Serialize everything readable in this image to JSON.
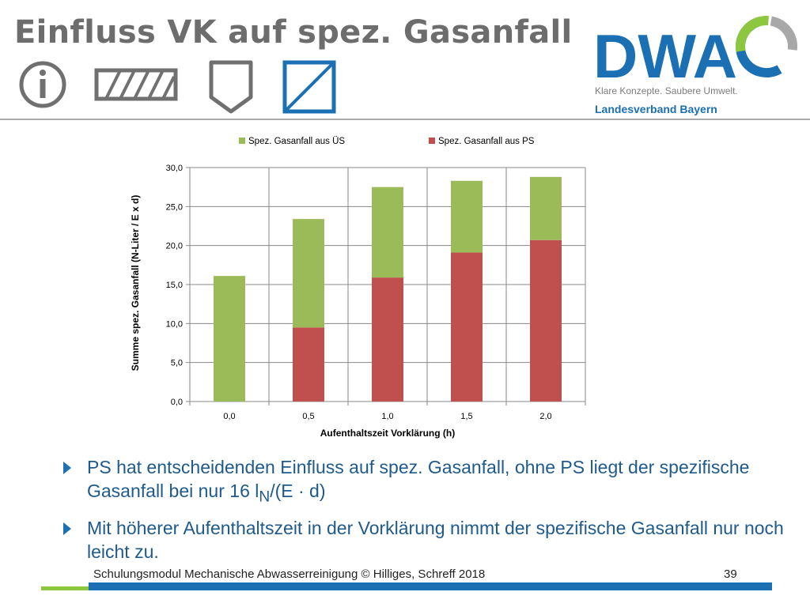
{
  "slide": {
    "title": "Einfluss VK auf spez. Gasanfall",
    "logo_text": "DWA",
    "tagline": "Klare Konzepte. Saubere Umwelt.",
    "landesverband": "Landesverband Bayern",
    "footer": "Schulungsmodul Mechanische Abwasserreinigung © Hilliges, Schreff  2018",
    "page_number": "39",
    "icons": [
      "info-icon",
      "hatched-rectangle-icon",
      "shield-icon",
      "diagonal-square-icon"
    ]
  },
  "bullets": [
    {
      "pre": "PS hat entscheidenden Einfluss auf spez. Gasanfall, ohne PS liegt der spezifische Gasanfall bei nur 16 l",
      "sub": "N",
      "post": "/(E · d)"
    },
    {
      "pre": "Mit höherer Aufenthaltszeit in der Vorklärung nimmt der spezifische Gasanfall nur noch leicht zu.",
      "sub": "",
      "post": ""
    }
  ],
  "colors": {
    "accent_blue": "#1b6fb3",
    "accent_green": "#8dc63f",
    "series_green": "#9bbb59",
    "series_red": "#c0504d"
  },
  "chart_data": {
    "type": "bar",
    "stacked": true,
    "categories": [
      "0,0",
      "0,5",
      "1,0",
      "1,5",
      "2,0"
    ],
    "series": [
      {
        "name": "Spez. Gasanfall aus PS",
        "color": "#c0504d",
        "values": [
          0,
          9.5,
          15.9,
          19.1,
          20.7
        ]
      },
      {
        "name": "Spez. Gasanfall aus ÜS",
        "color": "#9bbb59",
        "values": [
          16.1,
          13.9,
          11.6,
          9.2,
          8.1
        ]
      }
    ],
    "legend_order": [
      "Spez. Gasanfall aus ÜS",
      "Spez. Gasanfall aus PS"
    ],
    "xlabel": "Aufenthaltszeit Vorklärung (h)",
    "ylabel": "Summe spez. Gasanfall (N-Liter / E x d)",
    "ylim": [
      0,
      30
    ],
    "yticks": [
      "0,0",
      "5,0",
      "10,0",
      "15,0",
      "20,0",
      "25,0",
      "30,0"
    ],
    "grid": true,
    "legend_position": "top"
  }
}
